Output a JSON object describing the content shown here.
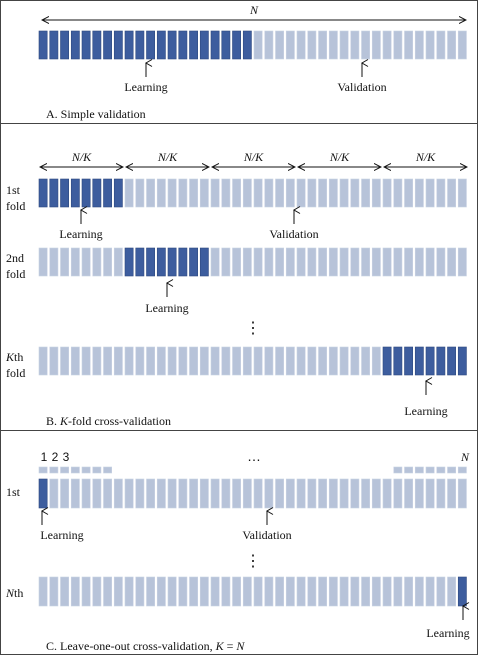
{
  "colors": {
    "learning": "#3d5d9e",
    "learning_edge": "#2f4a80",
    "validation": "#b7c3d9",
    "validation_edge": "#c9d2e3",
    "frame": "#444444"
  },
  "panel_a": {
    "total_label": "N",
    "learning_label": "Learning",
    "validation_label": "Validation",
    "caption": "A. Simple validation",
    "total_bars": 40,
    "learning_bars": 20
  },
  "panel_b": {
    "segment_label": "N/K",
    "segments": 5,
    "rows": [
      {
        "label_line1": "1st",
        "label_line2": "fold",
        "learning_segment": 1,
        "learning_label": "Learning",
        "validation_label": "Validation"
      },
      {
        "label_line1": "2nd",
        "label_line2": "fold",
        "learning_segment": 2,
        "learning_label": "Learning"
      },
      {
        "label_line1_italic": "K",
        "label_line1_rest": "th",
        "label_line2": "fold",
        "learning_segment": 5,
        "learning_label": "Learning"
      }
    ],
    "ellipsis": "⋮",
    "caption_prefix": "B. ",
    "caption_italic": "K",
    "caption_rest": "-fold cross-validation"
  },
  "panel_c": {
    "index_labels": [
      "1",
      "2",
      "3"
    ],
    "index_dots": "…",
    "index_last_label": "N",
    "rows": [
      {
        "label": "1st",
        "learning_index": 1,
        "learning_label": "Learning",
        "validation_label": "Validation"
      },
      {
        "label_italic": "N",
        "label_rest": "th",
        "learning_index": 40,
        "learning_label": "Learning"
      }
    ],
    "ellipsis": "⋮",
    "caption_prefix": "C. Leave-one-out cross-validation, ",
    "caption_k": "K",
    "caption_eq": " = ",
    "caption_n": "N",
    "total_bars": 40
  }
}
